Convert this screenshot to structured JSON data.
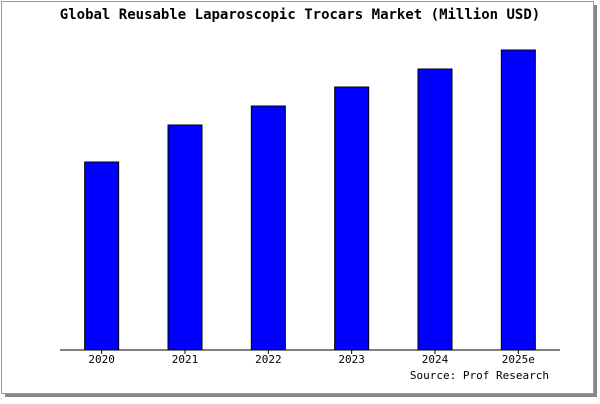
{
  "chart_data": {
    "type": "bar",
    "title": "Global Reusable Laparoscopic Trocars Market (Million USD)",
    "categories": [
      "2020",
      "2021",
      "2022",
      "2023",
      "2024",
      "2025e"
    ],
    "values": [
      188,
      225,
      244,
      263,
      281,
      300
    ],
    "color": "#0000ff",
    "ylim": [
      0,
      305
    ],
    "source": "Source: Prof Research"
  }
}
